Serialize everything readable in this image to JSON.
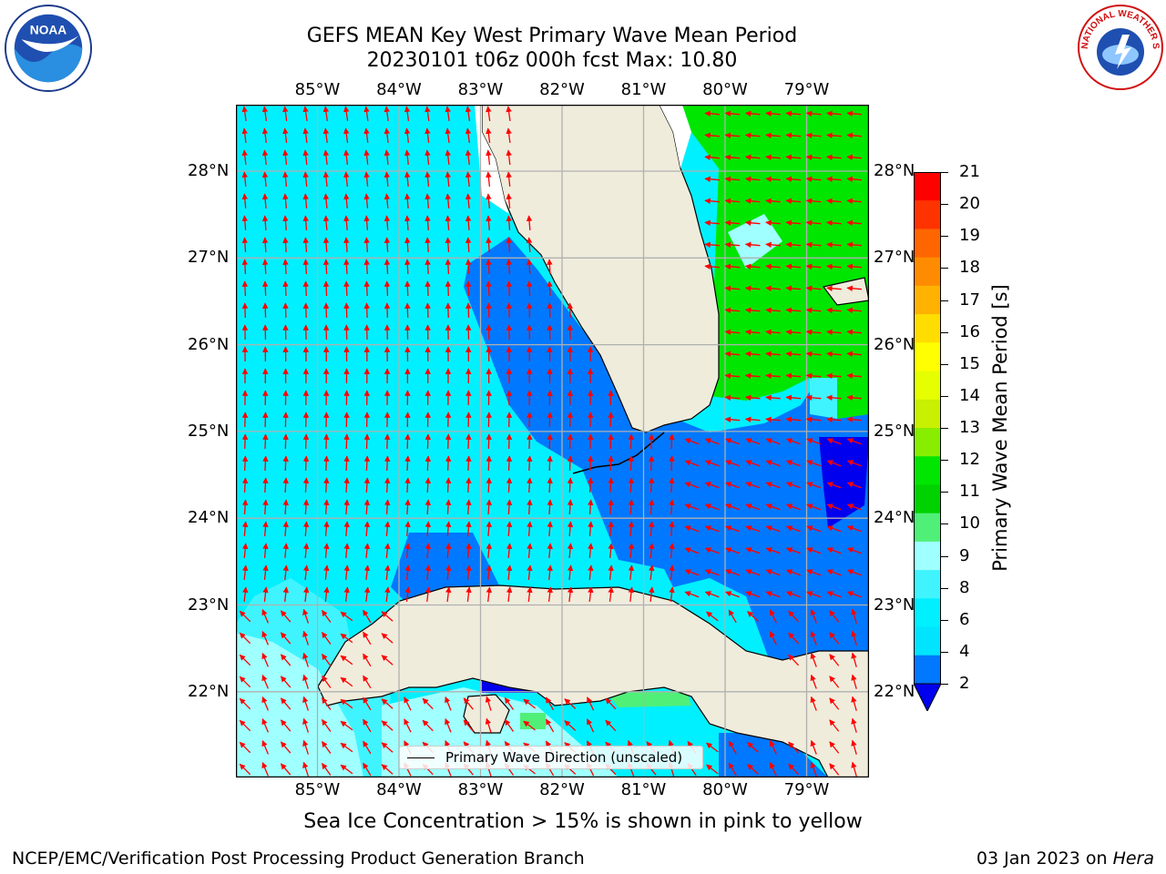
{
  "title": {
    "line1": "GEFS MEAN Key West Primary Wave Mean Period",
    "line2": "20230101 t06z 000h fcst   Max: 10.80"
  },
  "logos": {
    "left": {
      "text": "NOAA",
      "icon": "noaa-logo-icon"
    },
    "right": {
      "text": "NATIONAL WEATHER SERVICE",
      "icon": "nws-logo-icon"
    }
  },
  "map": {
    "lon_labels": [
      "85°W",
      "84°W",
      "83°W",
      "82°W",
      "81°W",
      "80°W",
      "79°W"
    ],
    "lat_labels": [
      "28°N",
      "27°N",
      "26°N",
      "25°N",
      "24°N",
      "23°N",
      "22°N"
    ],
    "land_color": "#efecdc",
    "arrow_color": "#ff0000",
    "grid_color": "#b0b0b0"
  },
  "legend": {
    "label": "Primary Wave Direction (unscaled)"
  },
  "colorbar": {
    "title": "Primary Wave Mean Period [s]",
    "ticks": [
      "21",
      "20",
      "19",
      "18",
      "17",
      "16",
      "15",
      "14",
      "13",
      "12",
      "11",
      "10",
      "9",
      "8",
      "6",
      "4",
      "2"
    ],
    "colors": [
      "#ff0000",
      "#ff3300",
      "#ff6600",
      "#ff8c00",
      "#ffb300",
      "#ffdd00",
      "#ffff00",
      "#e6ff00",
      "#c8f000",
      "#88ee00",
      "#00e600",
      "#00d200",
      "#50f078",
      "#a0ffff",
      "#40f4ff",
      "#00f0ff",
      "#00e4ff",
      "#0078ff"
    ],
    "under_color": "#0000ee"
  },
  "note": "Sea Ice Concentration > 15% is shown in pink to yellow",
  "footer": {
    "left": "NCEP/EMC/Verification Post Processing Product Generation Branch",
    "right_prefix": "03 Jan 2023 on ",
    "right_host": "Hera"
  }
}
